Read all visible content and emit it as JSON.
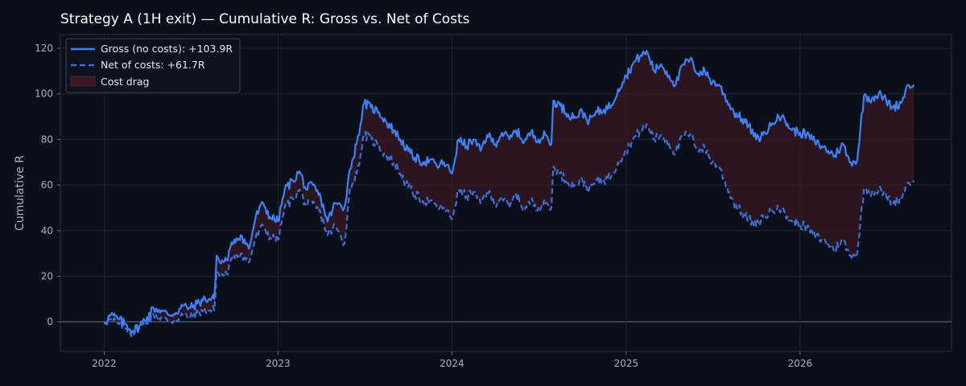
{
  "chart_data": {
    "type": "line",
    "title": "Strategy A (1H exit) — Cumulative R: Gross vs. Net of Costs",
    "xlabel": "",
    "ylabel": "Cumulative R",
    "xlim": [
      "2021-10-01",
      "2026-11-15"
    ],
    "ylim": [
      -13,
      126
    ],
    "x_ticks": [
      "2022",
      "2023",
      "2024",
      "2025",
      "2026"
    ],
    "y_ticks": [
      0,
      20,
      40,
      60,
      80,
      100,
      120
    ],
    "grid": true,
    "legend_position": "top-left",
    "colors": {
      "background": "#0b0f19",
      "gross": "#3b82f6",
      "net": "#3b6fd6",
      "cost_fill": "#3a1822",
      "grid": "#1e2533",
      "zero_line": "#5a6374"
    },
    "series": [
      {
        "name": "Gross (no costs): +103.9R",
        "style": "solid",
        "x": [
          "2022-01-01",
          "2022-01-15",
          "2022-02-01",
          "2022-02-15",
          "2022-03-01",
          "2022-03-15",
          "2022-04-01",
          "2022-04-15",
          "2022-05-01",
          "2022-05-15",
          "2022-06-01",
          "2022-06-15",
          "2022-07-01",
          "2022-07-15",
          "2022-08-01",
          "2022-08-20",
          "2022-08-25",
          "2022-09-01",
          "2022-09-15",
          "2022-10-01",
          "2022-10-15",
          "2022-11-01",
          "2022-11-15",
          "2022-12-01",
          "2022-12-15",
          "2023-01-01",
          "2023-01-15",
          "2023-02-01",
          "2023-02-15",
          "2023-03-01",
          "2023-03-15",
          "2023-04-01",
          "2023-04-15",
          "2023-05-01",
          "2023-05-20",
          "2023-06-01",
          "2023-06-15",
          "2023-07-01",
          "2023-07-15",
          "2023-08-01",
          "2023-08-15",
          "2023-09-01",
          "2023-09-15",
          "2023-10-01",
          "2023-10-15",
          "2023-11-01",
          "2023-11-15",
          "2023-12-01",
          "2023-12-15",
          "2024-01-01",
          "2024-01-15",
          "2024-02-01",
          "2024-02-15",
          "2024-03-01",
          "2024-03-15",
          "2024-04-01",
          "2024-04-15",
          "2024-05-01",
          "2024-05-15",
          "2024-06-01",
          "2024-06-15",
          "2024-07-01",
          "2024-07-15",
          "2024-07-28",
          "2024-08-01",
          "2024-08-15",
          "2024-09-01",
          "2024-09-15",
          "2024-10-01",
          "2024-10-15",
          "2024-11-01",
          "2024-11-15",
          "2024-12-01",
          "2024-12-15",
          "2025-01-01",
          "2025-01-15",
          "2025-02-01",
          "2025-02-15",
          "2025-03-01",
          "2025-03-15",
          "2025-04-01",
          "2025-04-15",
          "2025-05-01",
          "2025-05-15",
          "2025-06-01",
          "2025-06-15",
          "2025-07-01",
          "2025-07-15",
          "2025-08-01",
          "2025-08-15",
          "2025-09-01",
          "2025-09-15",
          "2025-10-01",
          "2025-10-15",
          "2025-11-01",
          "2025-11-15",
          "2025-12-01",
          "2025-12-15",
          "2026-01-01",
          "2026-01-15",
          "2026-02-01",
          "2026-02-15",
          "2026-03-01",
          "2026-03-15",
          "2026-04-01",
          "2026-04-15",
          "2026-05-01",
          "2026-05-15",
          "2026-06-01",
          "2026-06-15",
          "2026-07-01",
          "2026-07-15",
          "2026-08-01",
          "2026-08-15",
          "2026-08-28"
        ],
        "y": [
          0,
          3,
          1,
          -1,
          -4,
          -2,
          2,
          6,
          5,
          3,
          4,
          7,
          6,
          8,
          10,
          10,
          29,
          26,
          27,
          36,
          38,
          32,
          46,
          52,
          46,
          44,
          58,
          62,
          66,
          58,
          60,
          54,
          44,
          52,
          50,
          67,
          78,
          96,
          94,
          92,
          88,
          84,
          80,
          75,
          72,
          70,
          71,
          68,
          70,
          65,
          80,
          77,
          80,
          75,
          82,
          78,
          83,
          80,
          84,
          79,
          83,
          80,
          82,
          78,
          97,
          95,
          91,
          90,
          92,
          88,
          92,
          93,
          95,
          102,
          108,
          113,
          117,
          118,
          110,
          113,
          108,
          104,
          113,
          115,
          109,
          110,
          105,
          104,
          97,
          92,
          89,
          86,
          80,
          82,
          86,
          91,
          88,
          84,
          83,
          82,
          79,
          77,
          75,
          73,
          78,
          70,
          71,
          99,
          98,
          100,
          97,
          94,
          96,
          104,
          104
        ]
      },
      {
        "name": "Net of costs: +61.7R",
        "style": "dashed",
        "x": [
          "2022-01-01",
          "2022-01-15",
          "2022-02-01",
          "2022-02-15",
          "2022-03-01",
          "2022-03-15",
          "2022-04-01",
          "2022-04-15",
          "2022-05-01",
          "2022-05-15",
          "2022-06-01",
          "2022-06-15",
          "2022-07-01",
          "2022-07-15",
          "2022-08-01",
          "2022-08-20",
          "2022-08-25",
          "2022-09-01",
          "2022-09-15",
          "2022-10-01",
          "2022-10-15",
          "2022-11-01",
          "2022-11-15",
          "2022-12-01",
          "2022-12-15",
          "2023-01-01",
          "2023-01-15",
          "2023-02-01",
          "2023-02-15",
          "2023-03-01",
          "2023-03-15",
          "2023-04-01",
          "2023-04-15",
          "2023-05-01",
          "2023-05-20",
          "2023-06-01",
          "2023-06-15",
          "2023-07-01",
          "2023-07-15",
          "2023-08-01",
          "2023-08-15",
          "2023-09-01",
          "2023-09-15",
          "2023-10-01",
          "2023-10-15",
          "2023-11-01",
          "2023-11-15",
          "2023-12-01",
          "2023-12-15",
          "2024-01-01",
          "2024-01-15",
          "2024-02-01",
          "2024-02-15",
          "2024-03-01",
          "2024-03-15",
          "2024-04-01",
          "2024-04-15",
          "2024-05-01",
          "2024-05-15",
          "2024-06-01",
          "2024-06-15",
          "2024-07-01",
          "2024-07-15",
          "2024-07-28",
          "2024-08-01",
          "2024-08-15",
          "2024-09-01",
          "2024-09-15",
          "2024-10-01",
          "2024-10-15",
          "2024-11-01",
          "2024-11-15",
          "2024-12-01",
          "2024-12-15",
          "2025-01-01",
          "2025-01-15",
          "2025-02-01",
          "2025-02-15",
          "2025-03-01",
          "2025-03-15",
          "2025-04-01",
          "2025-04-15",
          "2025-05-01",
          "2025-05-15",
          "2025-06-01",
          "2025-06-15",
          "2025-07-01",
          "2025-07-15",
          "2025-08-01",
          "2025-08-15",
          "2025-09-01",
          "2025-09-15",
          "2025-10-01",
          "2025-10-15",
          "2025-11-01",
          "2025-11-15",
          "2025-12-01",
          "2025-12-15",
          "2026-01-01",
          "2026-01-15",
          "2026-02-01",
          "2026-02-15",
          "2026-03-01",
          "2026-03-15",
          "2026-04-01",
          "2026-04-15",
          "2026-05-01",
          "2026-05-15",
          "2026-06-01",
          "2026-06-15",
          "2026-07-01",
          "2026-07-15",
          "2026-08-01",
          "2026-08-15",
          "2026-08-28"
        ],
        "y": [
          0,
          1,
          -1,
          -3,
          -5,
          -3,
          0,
          3,
          2,
          0,
          1,
          3,
          2,
          4,
          5,
          5,
          22,
          20,
          21,
          29,
          30,
          26,
          37,
          42,
          37,
          36,
          50,
          54,
          58,
          51,
          52,
          47,
          38,
          42,
          34,
          58,
          65,
          82,
          80,
          77,
          73,
          70,
          65,
          59,
          56,
          53,
          53,
          50,
          50,
          45,
          58,
          55,
          57,
          52,
          57,
          52,
          55,
          50,
          56,
          49,
          53,
          50,
          52,
          50,
          68,
          65,
          61,
          60,
          62,
          58,
          62,
          62,
          64,
          70,
          75,
          80,
          84,
          86,
          80,
          82,
          78,
          74,
          82,
          82,
          76,
          76,
          70,
          68,
          59,
          52,
          48,
          45,
          42,
          46,
          48,
          51,
          47,
          44,
          43,
          41,
          38,
          36,
          34,
          32,
          36,
          29,
          30,
          58,
          57,
          58,
          55,
          52,
          54,
          61,
          62
        ]
      }
    ],
    "fill_between": {
      "name": "Cost drag",
      "between": [
        "Gross (no costs): +103.9R",
        "Net of costs: +61.7R"
      ]
    }
  }
}
